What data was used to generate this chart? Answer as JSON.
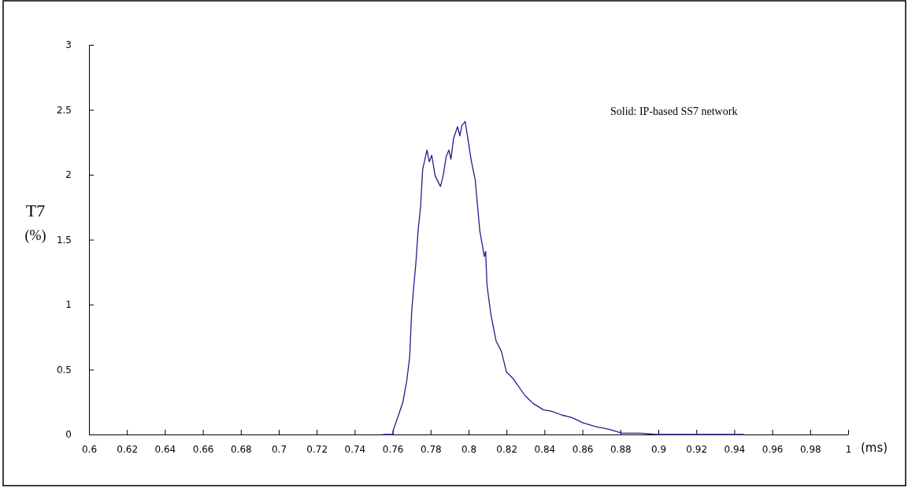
{
  "chart_data": {
    "type": "line",
    "xlabel": "(ms)",
    "ylabel": "T7 (%)",
    "annotations": [
      "Solid: IP-based SS7 network"
    ],
    "xlim": [
      0.6,
      1
    ],
    "xticks": [
      0.6,
      0.62,
      0.64,
      0.66,
      0.68,
      0.7,
      0.72,
      0.74,
      0.76,
      0.78,
      0.8,
      0.82,
      0.84,
      0.86,
      0.88,
      0.9,
      0.92,
      0.94,
      0.96,
      0.98,
      1
    ],
    "ylim": [
      0,
      3
    ],
    "yticks": [
      0,
      0.5,
      1,
      1.5,
      2,
      2.5,
      3
    ],
    "grid": false,
    "marker": "none",
    "line_style": "solid",
    "series": [
      {
        "color": "#1f1f8f",
        "x": [
          0.755,
          0.76,
          0.7605,
          0.763,
          0.7654,
          0.7675,
          0.769,
          0.77,
          0.771,
          0.7723,
          0.7734,
          0.7747,
          0.7758,
          0.7781,
          0.7793,
          0.7806,
          0.7824,
          0.7852,
          0.7866,
          0.7882,
          0.7896,
          0.7907,
          0.7921,
          0.7942,
          0.7954,
          0.7965,
          0.7982,
          0.7993,
          0.8014,
          0.8035,
          0.8059,
          0.8083,
          0.809,
          0.8097,
          0.8118,
          0.8145,
          0.8173,
          0.82,
          0.8235,
          0.8297,
          0.8339,
          0.8394,
          0.8436,
          0.8491,
          0.8546,
          0.8602,
          0.8671,
          0.874,
          0.8809,
          0.8905,
          0.899,
          0.92,
          0.945
        ],
        "values": [
          0,
          0,
          0.04,
          0.145,
          0.25,
          0.42,
          0.6,
          0.94,
          1.12,
          1.33,
          1.57,
          1.75,
          2.04,
          2.19,
          2.1,
          2.15,
          1.99,
          1.91,
          1.99,
          2.14,
          2.19,
          2.12,
          2.28,
          2.37,
          2.3,
          2.38,
          2.41,
          2.31,
          2.11,
          1.96,
          1.57,
          1.37,
          1.41,
          1.15,
          0.92,
          0.72,
          0.64,
          0.48,
          0.43,
          0.3,
          0.24,
          0.19,
          0.18,
          0.15,
          0.13,
          0.09,
          0.06,
          0.04,
          0.01,
          0.01,
          0,
          0,
          0
        ]
      }
    ]
  }
}
